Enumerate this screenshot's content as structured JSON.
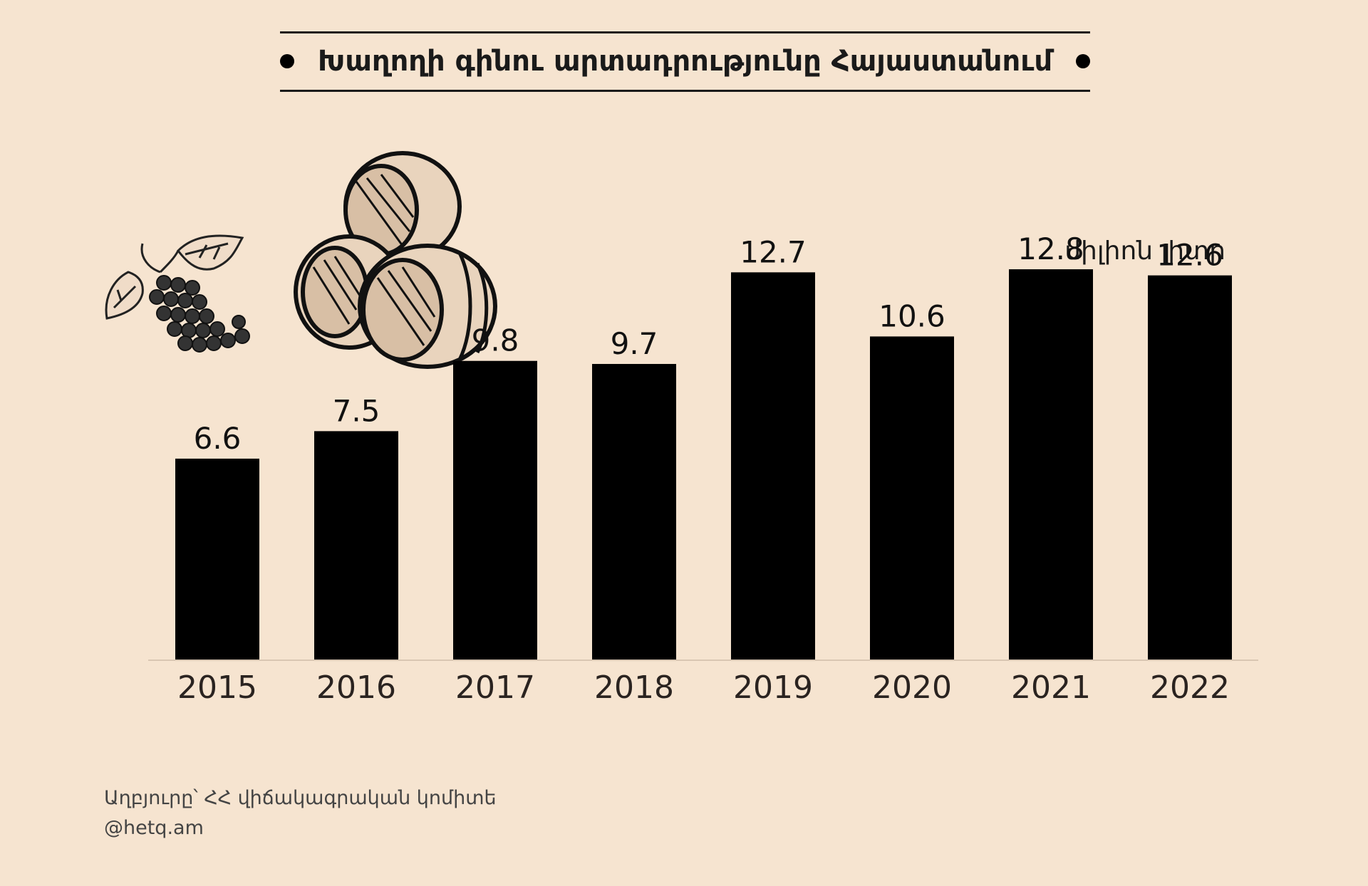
{
  "title": "Խաղողի գինու արտադրությունը Հայաստանում",
  "unit_label": "միլիոն լիտր",
  "source_line": "Աղբյուրը՝ ՀՀ վիճակագրական կոմիտե",
  "handle": "@hetq.am",
  "colors": {
    "background": "#f6e4d0",
    "bar": "#000000",
    "text": "#1a1a1a",
    "axis": "#d9c6b2"
  },
  "chart_data": {
    "type": "bar",
    "categories": [
      "2015",
      "2016",
      "2017",
      "2018",
      "2019",
      "2020",
      "2021",
      "2022"
    ],
    "values": [
      6.6,
      7.5,
      9.8,
      9.7,
      12.7,
      10.6,
      12.8,
      12.6
    ],
    "title": "Խաղողի գինու արտադրությունը Հայաստանում",
    "ylabel": "միլիոն լիտր",
    "ylim": [
      0,
      15.6
    ],
    "grid": false,
    "legend": "none"
  }
}
